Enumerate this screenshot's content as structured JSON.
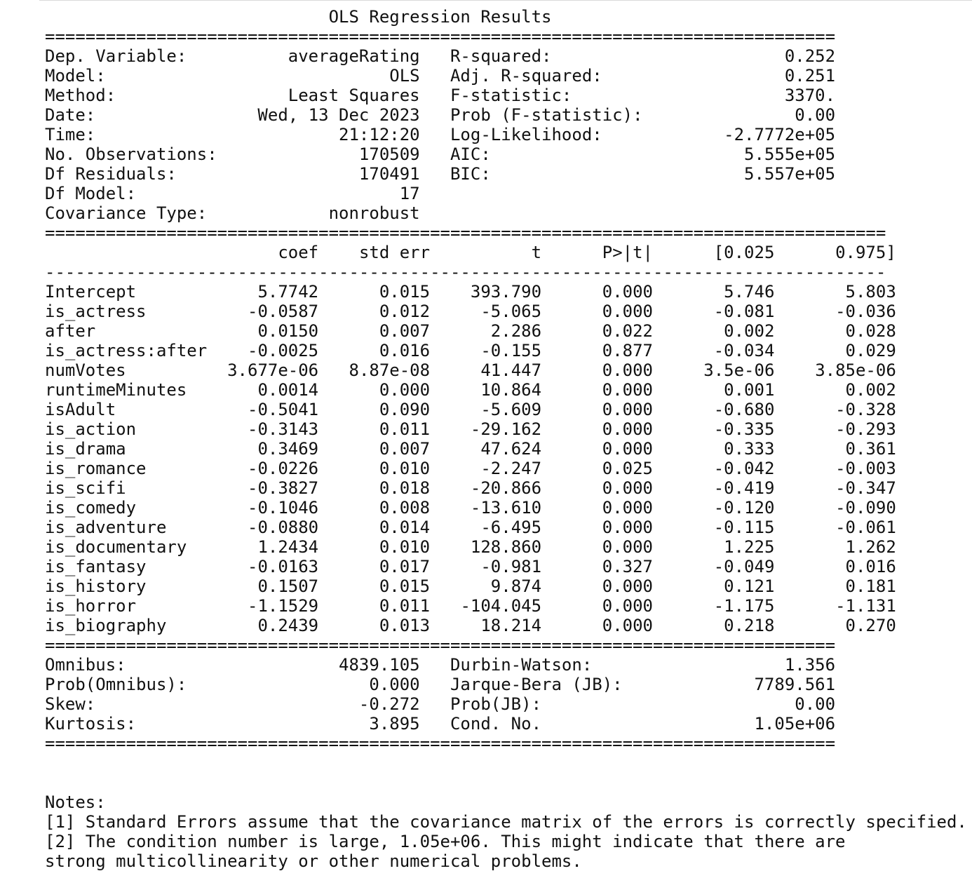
{
  "title": "OLS Regression Results",
  "summary_rows": [
    {
      "label": "Dep. Variable:",
      "value": "averageRating",
      "label2": "R-squared:",
      "value2": "0.252"
    },
    {
      "label": "Model:",
      "value": "OLS",
      "label2": "Adj. R-squared:",
      "value2": "0.251"
    },
    {
      "label": "Method:",
      "value": "Least Squares",
      "label2": "F-statistic:",
      "value2": "3370."
    },
    {
      "label": "Date:",
      "value": "Wed, 13 Dec 2023",
      "label2": "Prob (F-statistic):",
      "value2": "0.00"
    },
    {
      "label": "Time:",
      "value": "21:12:20",
      "label2": "Log-Likelihood:",
      "value2": "-2.7772e+05"
    },
    {
      "label": "No. Observations:",
      "value": "170509",
      "label2": "AIC:",
      "value2": "5.555e+05"
    },
    {
      "label": "Df Residuals:",
      "value": "170491",
      "label2": "BIC:",
      "value2": "5.557e+05"
    },
    {
      "label": "Df Model:",
      "value": "17",
      "label2": "",
      "value2": ""
    },
    {
      "label": "Covariance Type:",
      "value": "nonrobust",
      "label2": "",
      "value2": ""
    }
  ],
  "coef_header": [
    "coef",
    "std err",
    "t",
    "P>|t|",
    "[0.025",
    "0.975]"
  ],
  "coef_rows": [
    {
      "name": "Intercept",
      "coef": "5.7742",
      "std_err": "0.015",
      "t": "393.790",
      "p": "0.000",
      "lo": "5.746",
      "hi": "5.803"
    },
    {
      "name": "is_actress",
      "coef": "-0.0587",
      "std_err": "0.012",
      "t": "-5.065",
      "p": "0.000",
      "lo": "-0.081",
      "hi": "-0.036"
    },
    {
      "name": "after",
      "coef": "0.0150",
      "std_err": "0.007",
      "t": "2.286",
      "p": "0.022",
      "lo": "0.002",
      "hi": "0.028"
    },
    {
      "name": "is_actress:after",
      "coef": "-0.0025",
      "std_err": "0.016",
      "t": "-0.155",
      "p": "0.877",
      "lo": "-0.034",
      "hi": "0.029"
    },
    {
      "name": "numVotes",
      "coef": "3.677e-06",
      "std_err": "8.87e-08",
      "t": "41.447",
      "p": "0.000",
      "lo": "3.5e-06",
      "hi": "3.85e-06"
    },
    {
      "name": "runtimeMinutes",
      "coef": "0.0014",
      "std_err": "0.000",
      "t": "10.864",
      "p": "0.000",
      "lo": "0.001",
      "hi": "0.002"
    },
    {
      "name": "isAdult",
      "coef": "-0.5041",
      "std_err": "0.090",
      "t": "-5.609",
      "p": "0.000",
      "lo": "-0.680",
      "hi": "-0.328"
    },
    {
      "name": "is_action",
      "coef": "-0.3143",
      "std_err": "0.011",
      "t": "-29.162",
      "p": "0.000",
      "lo": "-0.335",
      "hi": "-0.293"
    },
    {
      "name": "is_drama",
      "coef": "0.3469",
      "std_err": "0.007",
      "t": "47.624",
      "p": "0.000",
      "lo": "0.333",
      "hi": "0.361"
    },
    {
      "name": "is_romance",
      "coef": "-0.0226",
      "std_err": "0.010",
      "t": "-2.247",
      "p": "0.025",
      "lo": "-0.042",
      "hi": "-0.003"
    },
    {
      "name": "is_scifi",
      "coef": "-0.3827",
      "std_err": "0.018",
      "t": "-20.866",
      "p": "0.000",
      "lo": "-0.419",
      "hi": "-0.347"
    },
    {
      "name": "is_comedy",
      "coef": "-0.1046",
      "std_err": "0.008",
      "t": "-13.610",
      "p": "0.000",
      "lo": "-0.120",
      "hi": "-0.090"
    },
    {
      "name": "is_adventure",
      "coef": "-0.0880",
      "std_err": "0.014",
      "t": "-6.495",
      "p": "0.000",
      "lo": "-0.115",
      "hi": "-0.061"
    },
    {
      "name": "is_documentary",
      "coef": "1.2434",
      "std_err": "0.010",
      "t": "128.860",
      "p": "0.000",
      "lo": "1.225",
      "hi": "1.262"
    },
    {
      "name": "is_fantasy",
      "coef": "-0.0163",
      "std_err": "0.017",
      "t": "-0.981",
      "p": "0.327",
      "lo": "-0.049",
      "hi": "0.016"
    },
    {
      "name": "is_history",
      "coef": "0.1507",
      "std_err": "0.015",
      "t": "9.874",
      "p": "0.000",
      "lo": "0.121",
      "hi": "0.181"
    },
    {
      "name": "is_horror",
      "coef": "-1.1529",
      "std_err": "0.011",
      "t": "-104.045",
      "p": "0.000",
      "lo": "-1.175",
      "hi": "-1.131"
    },
    {
      "name": "is_biography",
      "coef": "0.2439",
      "std_err": "0.013",
      "t": "18.214",
      "p": "0.000",
      "lo": "0.218",
      "hi": "0.270"
    }
  ],
  "diag_rows": [
    {
      "label": "Omnibus:",
      "value": "4839.105",
      "label2": "Durbin-Watson:",
      "value2": "1.356"
    },
    {
      "label": "Prob(Omnibus):",
      "value": "0.000",
      "label2": "Jarque-Bera (JB):",
      "value2": "7789.561"
    },
    {
      "label": "Skew:",
      "value": "-0.272",
      "label2": "Prob(JB):",
      "value2": "0.00"
    },
    {
      "label": "Kurtosis:",
      "value": "3.895",
      "label2": "Cond. No.",
      "value2": "1.05e+06"
    }
  ],
  "notes": [
    "Notes:",
    "[1] Standard Errors assume that the covariance matrix of the errors is correctly specified.",
    "[2] The condition number is large, 1.05e+06. This might indicate that there are",
    "strong multicollinearity or other numerical problems."
  ]
}
